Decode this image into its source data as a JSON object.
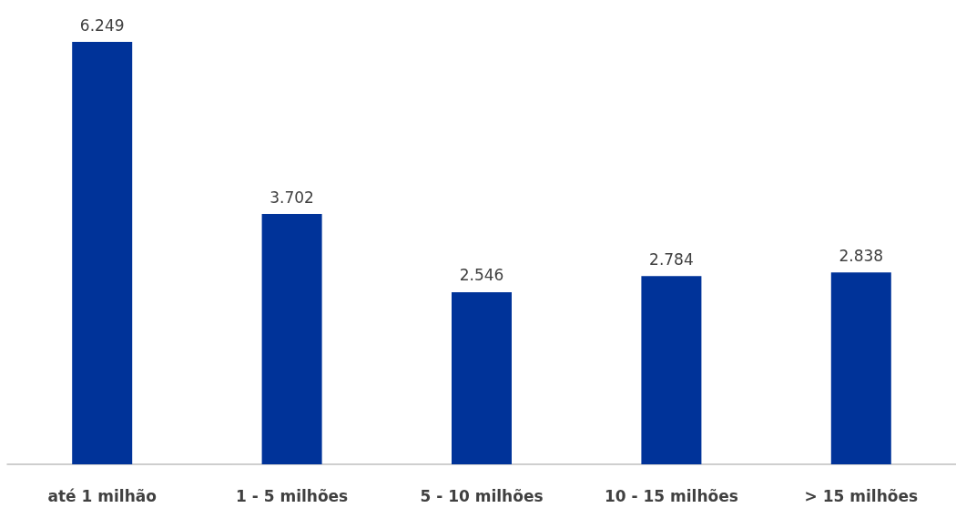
{
  "chart_data": {
    "type": "bar",
    "categories": [
      "até 1 milhão",
      "1 - 5 milhões",
      "5 - 10 milhões",
      "10 - 15 milhões",
      "> 15 milhões"
    ],
    "values": [
      6249,
      3702,
      2546,
      2784,
      2838
    ],
    "value_labels": [
      "6.249",
      "3.702",
      "2.546",
      "2.784",
      "2.838"
    ],
    "color": "#003399"
  }
}
